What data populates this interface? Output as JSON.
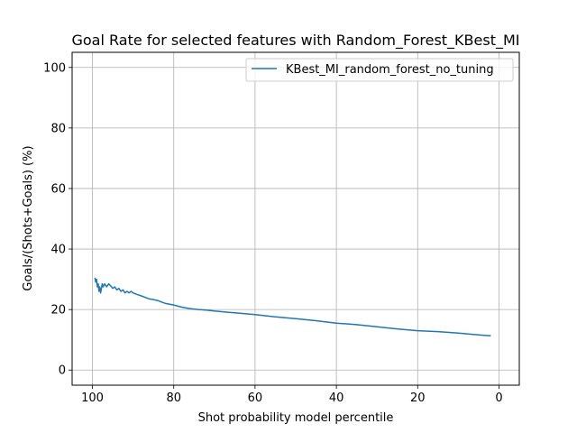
{
  "chart_data": {
    "type": "line",
    "title": "Goal Rate for selected features with Random_Forest_KBest_MI",
    "xlabel": "Shot probability model percentile",
    "ylabel": "Goals/(Shots+Goals) (%)",
    "xlim": [
      105,
      -5
    ],
    "ylim": [
      -5,
      105
    ],
    "x_inverted": true,
    "xticks": [
      100,
      80,
      60,
      40,
      20,
      0
    ],
    "yticks": [
      0,
      20,
      40,
      60,
      80,
      100
    ],
    "grid": true,
    "legend_position": "top-right",
    "series": [
      {
        "name": "KBest_MI_random_forest_no_tuning",
        "color": "#1f77b4",
        "x": [
          99.4,
          99.2,
          99.0,
          98.8,
          98.6,
          98.4,
          98.2,
          98.0,
          97.8,
          97.6,
          97.4,
          97.0,
          96.5,
          96.0,
          95.5,
          95.0,
          94.5,
          94.0,
          93.5,
          93.0,
          92.5,
          92.0,
          91.5,
          91.0,
          90.5,
          90.0,
          89.0,
          88.0,
          87.0,
          86.0,
          85.0,
          84.0,
          83.0,
          82.0,
          80.0,
          78.0,
          76.0,
          74.0,
          72.0,
          70.0,
          65.0,
          60.0,
          55.0,
          50.0,
          45.0,
          40.0,
          35.0,
          30.0,
          25.0,
          20.0,
          15.0,
          10.0,
          5.0,
          2.0
        ],
        "y": [
          30.5,
          29.0,
          30.0,
          27.5,
          28.5,
          26.0,
          27.5,
          25.5,
          27.0,
          28.5,
          27.5,
          28.5,
          27.5,
          28.5,
          27.8,
          27.0,
          27.5,
          26.5,
          27.0,
          26.0,
          26.5,
          25.5,
          26.0,
          25.5,
          26.0,
          25.5,
          25.0,
          24.5,
          24.0,
          23.5,
          23.3,
          23.0,
          22.5,
          22.0,
          21.5,
          20.8,
          20.3,
          20.0,
          19.8,
          19.5,
          18.9,
          18.3,
          17.6,
          17.0,
          16.3,
          15.5,
          15.0,
          14.3,
          13.6,
          13.0,
          12.7,
          12.2,
          11.6,
          11.3
        ]
      }
    ]
  }
}
